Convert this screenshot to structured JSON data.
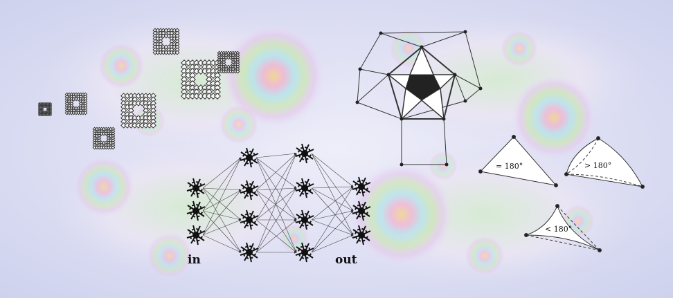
{
  "network": {
    "input_label": "in",
    "output_label": "out"
  },
  "geometry": {
    "flat_triangle_label": "= 180°",
    "spherical_triangle_label": "> 180°",
    "hyperbolic_triangle_label": "< 180°"
  },
  "colors": {
    "background_tint": "#d9dcf3",
    "fractal_green": "#b9e0b3",
    "fractal_pink": "#f0c9dc",
    "fractal_cyan": "#a9e3ea",
    "line_dark": "#222222"
  },
  "icons": [
    "sierpinski-carpet-fractal-icon",
    "pentagram-graph-icon",
    "neuron-icon"
  ]
}
